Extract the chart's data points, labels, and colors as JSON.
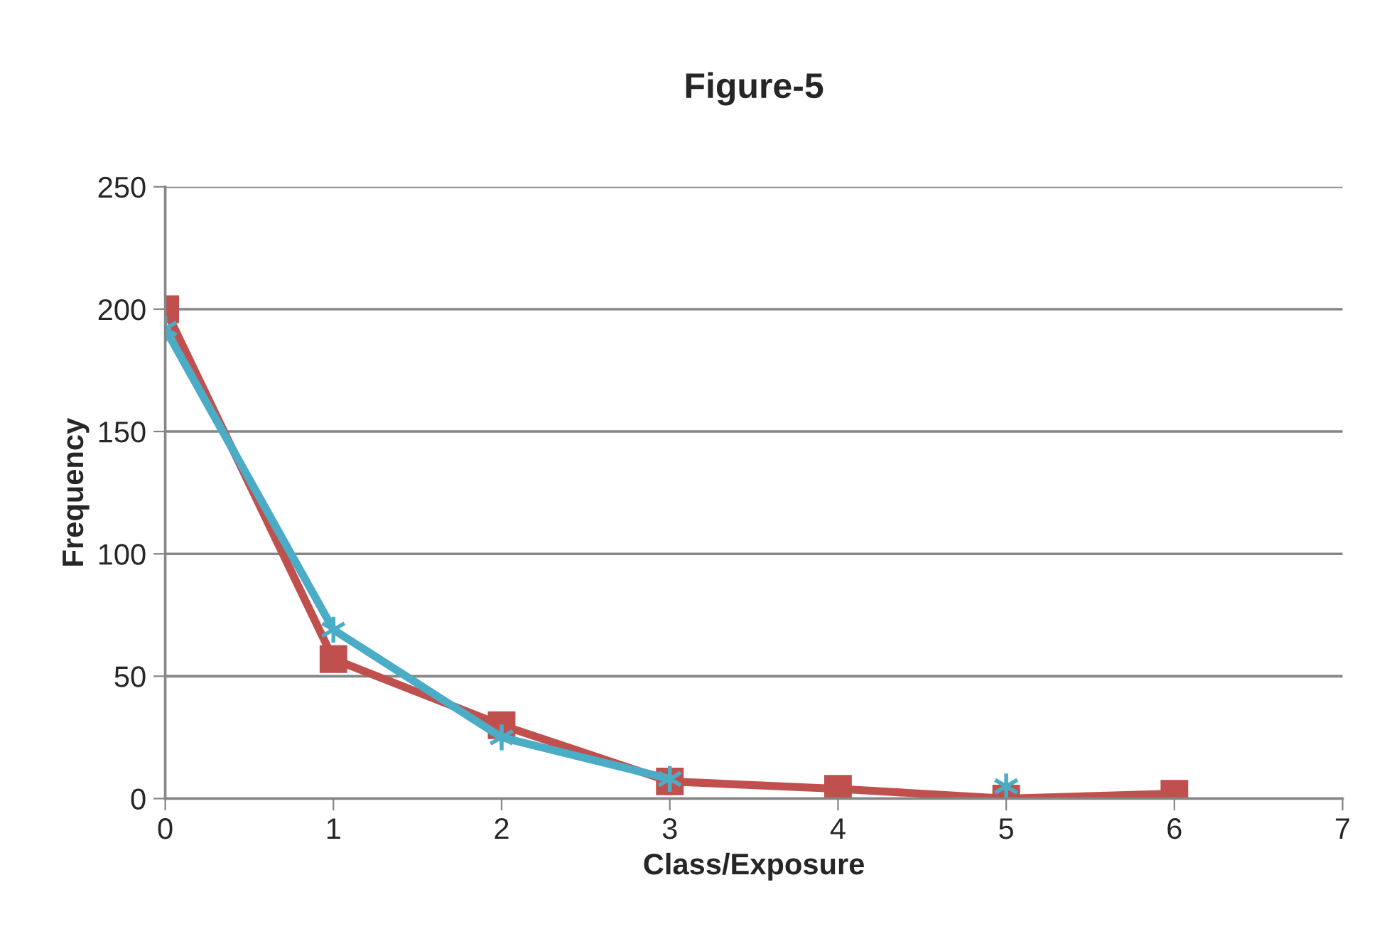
{
  "chart_data": {
    "type": "line",
    "title": "Figure-5",
    "xlabel": "Class/Exposure",
    "ylabel": "Frequency",
    "x": [
      0,
      1,
      2,
      3,
      4,
      5,
      6
    ],
    "series": [
      {
        "color": "#c0504d",
        "marker": "square",
        "values": [
          200,
          57,
          30,
          7,
          4,
          0,
          2
        ]
      },
      {
        "color": "#4bacc6",
        "marker": "cross",
        "values": [
          192,
          69,
          25,
          8,
          null,
          5,
          null
        ]
      }
    ],
    "xlim": [
      0,
      7
    ],
    "xticks": [
      0,
      1,
      2,
      3,
      4,
      5,
      6,
      7
    ],
    "ylim": [
      0,
      250
    ],
    "yticks": [
      0,
      50,
      100,
      150,
      200,
      250
    ],
    "grid": "y",
    "legend": false,
    "line_style": "solid"
  }
}
